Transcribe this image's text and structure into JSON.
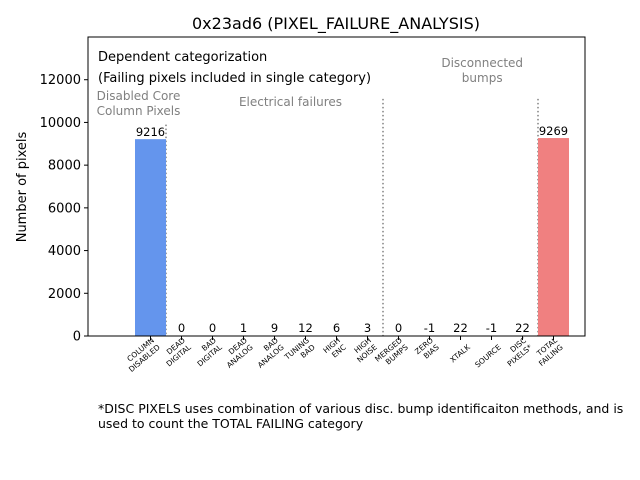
{
  "chart_data": {
    "type": "bar",
    "title": "0x23ad6 (PIXEL_FAILURE_ANALYSIS)",
    "xlabel": "",
    "ylabel": "Number of pixels",
    "ylim": [
      0,
      14000
    ],
    "yticks": [
      0,
      2000,
      4000,
      6000,
      8000,
      10000,
      12000
    ],
    "categories": [
      "COLUMN\nDISABLED",
      "DEAD\nDIGITAL",
      "BAD\nDIGITAL",
      "DEAD\nANALOG",
      "BAD\nANALOG",
      "TUNING\nBAD",
      "HIGH\nENC",
      "HIGH\nNOISE",
      "MERGED\nBUMPS",
      "ZERO\nBIAS",
      "XTALK",
      "SOURCE",
      "DISC\nPIXELS*",
      "TOTAL\nFAILING"
    ],
    "values": [
      9216,
      0,
      0,
      1,
      9,
      12,
      6,
      3,
      0,
      -1,
      22,
      -1,
      22,
      9269
    ],
    "bar_colors": [
      "#6495ed",
      "#6495ed",
      "#6495ed",
      "#6495ed",
      "#6495ed",
      "#6495ed",
      "#6495ed",
      "#6495ed",
      "#6495ed",
      "#6495ed",
      "#6495ed",
      "#6495ed",
      "#6495ed",
      "#f08080"
    ],
    "legend_text": [
      "Dependent categorization",
      "(Failing pixels included in single category)"
    ],
    "section_labels": [
      {
        "text": "Disabled Core\nColumn Pixels"
      },
      {
        "text": "Electrical failures"
      },
      {
        "text": "Disconnected\nbumps"
      }
    ],
    "grid": false
  },
  "footnote": "*DISC PIXELS uses combination of various disc. bump identificaiton methods, and is\nused to count the TOTAL FAILING category"
}
